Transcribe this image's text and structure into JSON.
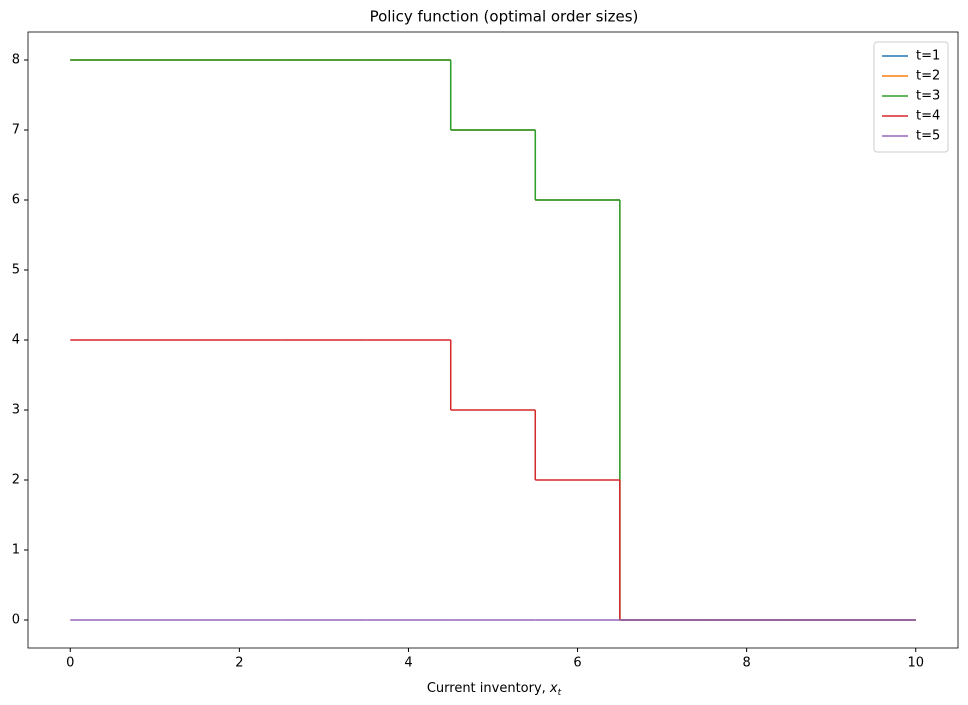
{
  "chart_data": {
    "type": "step",
    "title": "Policy function (optimal order sizes)",
    "xlabel": [
      "Current inventory, ",
      "x",
      "t"
    ],
    "x": [
      0,
      1,
      2,
      3,
      4,
      5,
      6,
      7,
      8,
      9,
      10
    ],
    "series": [
      {
        "name": "t=1",
        "color": "#1f77b4",
        "values": [
          8,
          8,
          8,
          8,
          8,
          7,
          6,
          0,
          0,
          0,
          0
        ]
      },
      {
        "name": "t=2",
        "color": "#ff7f0e",
        "values": [
          8,
          8,
          8,
          8,
          8,
          7,
          6,
          0,
          0,
          0,
          0
        ]
      },
      {
        "name": "t=3",
        "color": "#2ca02c",
        "values": [
          8,
          8,
          8,
          8,
          8,
          7,
          6,
          0,
          0,
          0,
          0
        ]
      },
      {
        "name": "t=4",
        "color": "#d62728",
        "values": [
          4,
          4,
          4,
          4,
          4,
          3,
          2,
          0,
          0,
          0,
          0
        ]
      },
      {
        "name": "t=5",
        "color": "#9467bd",
        "values": [
          0,
          0,
          0,
          0,
          0,
          0,
          0,
          0,
          0,
          0,
          0
        ]
      }
    ],
    "xlim": [
      -0.5,
      10.5
    ],
    "xticks": [
      0,
      2,
      4,
      6,
      8,
      10
    ],
    "ylim": [
      -0.4,
      8.4
    ],
    "yticks": [
      0,
      1,
      2,
      3,
      4,
      5,
      6,
      7,
      8
    ],
    "legend": "upper right"
  }
}
